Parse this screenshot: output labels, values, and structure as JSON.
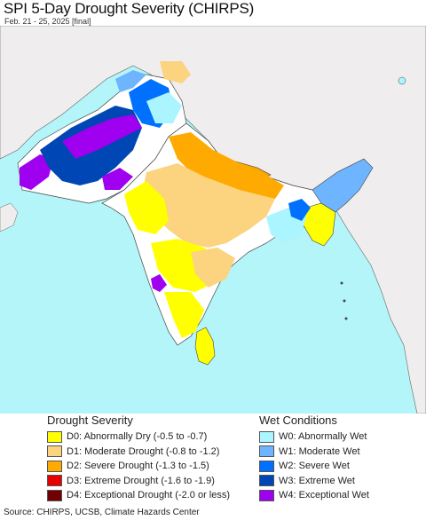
{
  "header": {
    "title": "SPI 5-Day Drought Severity (CHIRPS)",
    "subtitle": "Feb. 21 - 25, 2025 [final]"
  },
  "colors": {
    "ocean": "#b3f5f9",
    "land_outside": "#efeded",
    "land_base": "#ffffff",
    "border": "#444444"
  },
  "legend": {
    "drought": {
      "heading": "Drought Severity",
      "items": [
        {
          "code": "D0",
          "label": "D0: Abnormally Dry (-0.5 to -0.7)",
          "color": "#ffff00"
        },
        {
          "code": "D1",
          "label": "D1: Moderate Drought (-0.8 to -1.2)",
          "color": "#fcd37f"
        },
        {
          "code": "D2",
          "label": "D2: Severe Drought (-1.3 to -1.5)",
          "color": "#ffaa00"
        },
        {
          "code": "D3",
          "label": "D3: Extreme Drought (-1.6 to -1.9)",
          "color": "#e60000"
        },
        {
          "code": "D4",
          "label": "D4: Exceptional Drought (-2.0 or less)",
          "color": "#730000"
        }
      ]
    },
    "wet": {
      "heading": "Wet Conditions",
      "items": [
        {
          "code": "W0",
          "label": "W0: Abnormally Wet",
          "color": "#aaf5ff"
        },
        {
          "code": "W1",
          "label": "W1: Moderate Wet",
          "color": "#6eb4ff"
        },
        {
          "code": "W2",
          "label": "W2: Severe Wet",
          "color": "#0070ff"
        },
        {
          "code": "W3",
          "label": "W3: Extreme Wet",
          "color": "#0046b4"
        },
        {
          "code": "W4",
          "label": "W4: Exceptional Wet",
          "color": "#a000f0"
        }
      ]
    }
  },
  "footer": {
    "source": "Source: CHIRPS, UCSB, Climate Hazards Center"
  }
}
